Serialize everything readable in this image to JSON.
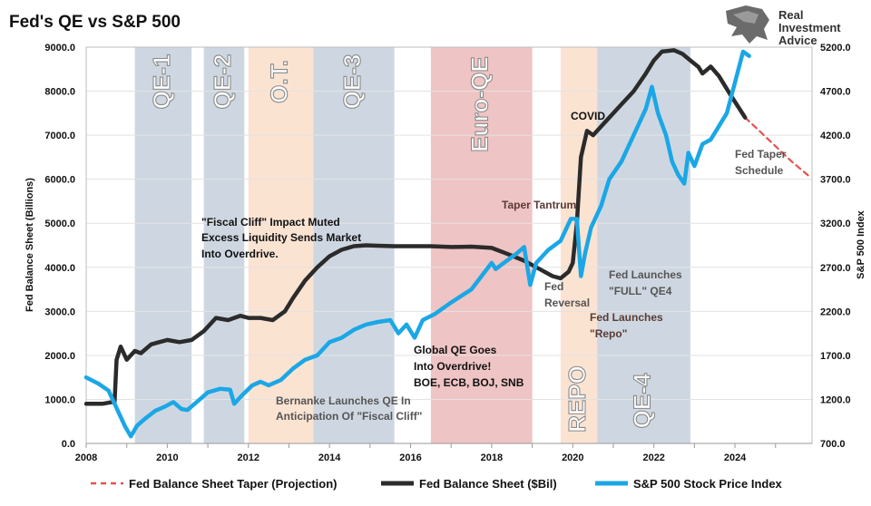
{
  "header": {
    "title": "Fed's QE vs S&P 500",
    "logo_text_line1": "Real",
    "logo_text_line2": "Investment",
    "logo_text_line3": "Advice"
  },
  "chart_data": {
    "type": "line",
    "title": "Fed's QE vs S&P 500",
    "ylabel_left": "Fed Balance Sheet (Billions)",
    "ylabel_right": "S&P 500 Index",
    "xlim": [
      2008,
      2025.9
    ],
    "ylim_left": [
      0,
      9000
    ],
    "ylim_right": [
      700,
      5200
    ],
    "x_ticks": [
      2008,
      2010,
      2012,
      2014,
      2016,
      2018,
      2020,
      2022,
      2024
    ],
    "x_tick_labels": [
      "2008",
      "2010",
      "2012",
      "2014",
      "2016",
      "2018",
      "2020",
      "2022",
      "2024"
    ],
    "left_ticks": [
      0,
      1000,
      2000,
      3000,
      4000,
      5000,
      6000,
      7000,
      8000,
      9000
    ],
    "left_tick_labels": [
      "0.0",
      "1000.0",
      "2000.0",
      "3000.0",
      "4000.0",
      "5000.0",
      "6000.0",
      "7000.0",
      "8000.0",
      "9000.0"
    ],
    "right_ticks": [
      700,
      1200,
      1700,
      2200,
      2700,
      3200,
      3700,
      4200,
      4700,
      5200
    ],
    "right_tick_labels": [
      "700.0",
      "1200.0",
      "1700.0",
      "2200.0",
      "2700.0",
      "3200.0",
      "3700.0",
      "4200.0",
      "4700.0",
      "5200.0"
    ],
    "shaded_regions": [
      {
        "label": "QE-1",
        "start": 2009.2,
        "end": 2010.6,
        "color": "#ced7e1"
      },
      {
        "label": "QE-2",
        "start": 2010.9,
        "end": 2011.9,
        "color": "#ced7e1"
      },
      {
        "label": "O.T.",
        "start": 2012.0,
        "end": 2013.6,
        "color": "#fbe3d2"
      },
      {
        "label": "QE-3",
        "start": 2013.6,
        "end": 2015.6,
        "color": "#ced7e1"
      },
      {
        "label": "Euro-QE",
        "start": 2016.5,
        "end": 2019.0,
        "color": "#efc4c4"
      },
      {
        "label": "REPO",
        "start": 2019.7,
        "end": 2020.6,
        "color": "#fbe3d2"
      },
      {
        "label": "QE-4",
        "start": 2020.6,
        "end": 2022.9,
        "color": "#ced7e1"
      }
    ],
    "series": [
      {
        "name": "Fed Balance Sheet Taper (Projection)",
        "axis": "left",
        "color": "#e8504c",
        "style": "dashed",
        "x": [
          2024.25,
          2024.6,
          2025.0,
          2025.4,
          2025.85
        ],
        "y": [
          7400,
          7100,
          6750,
          6400,
          6050
        ]
      },
      {
        "name": "Fed Balance Sheet ($Bil)",
        "axis": "left",
        "color": "#2b2b2b",
        "style": "solid",
        "x": [
          2008.0,
          2008.4,
          2008.7,
          2008.75,
          2008.85,
          2009.0,
          2009.2,
          2009.35,
          2009.6,
          2009.8,
          2010.0,
          2010.3,
          2010.6,
          2010.9,
          2011.2,
          2011.5,
          2011.8,
          2012.0,
          2012.3,
          2012.6,
          2012.9,
          2013.1,
          2013.4,
          2013.7,
          2014.0,
          2014.3,
          2014.6,
          2014.9,
          2015.2,
          2015.6,
          2016.0,
          2016.5,
          2017.0,
          2017.5,
          2018.0,
          2018.4,
          2018.8,
          2019.2,
          2019.5,
          2019.7,
          2019.9,
          2020.0,
          2020.1,
          2020.2,
          2020.35,
          2020.5,
          2020.7,
          2020.9,
          2021.2,
          2021.5,
          2021.8,
          2022.0,
          2022.2,
          2022.5,
          2022.7,
          2022.9,
          2023.1,
          2023.2,
          2023.4,
          2023.6,
          2023.9,
          2024.25
        ],
        "y": [
          900,
          900,
          950,
          1900,
          2200,
          1900,
          2100,
          2050,
          2250,
          2300,
          2350,
          2300,
          2350,
          2550,
          2850,
          2800,
          2900,
          2850,
          2850,
          2800,
          3000,
          3300,
          3700,
          4000,
          4250,
          4400,
          4480,
          4500,
          4490,
          4480,
          4480,
          4480,
          4460,
          4470,
          4440,
          4300,
          4150,
          3950,
          3800,
          3750,
          3900,
          4100,
          5000,
          6500,
          7100,
          7000,
          7200,
          7400,
          7700,
          8000,
          8400,
          8700,
          8900,
          8930,
          8850,
          8700,
          8550,
          8400,
          8560,
          8350,
          7900,
          7400
        ]
      },
      {
        "name": "S&P 500 Stock Price Index",
        "axis": "right",
        "color": "#1ba7e6",
        "style": "solid",
        "x": [
          2008.0,
          2008.3,
          2008.55,
          2008.8,
          2008.95,
          2009.1,
          2009.25,
          2009.45,
          2009.7,
          2009.95,
          2010.15,
          2010.35,
          2010.5,
          2010.75,
          2011.0,
          2011.3,
          2011.55,
          2011.65,
          2011.85,
          2012.1,
          2012.3,
          2012.5,
          2012.8,
          2013.1,
          2013.4,
          2013.7,
          2014.0,
          2014.3,
          2014.6,
          2014.9,
          2015.2,
          2015.5,
          2015.7,
          2015.9,
          2016.1,
          2016.3,
          2016.6,
          2017.0,
          2017.5,
          2018.0,
          2018.1,
          2018.3,
          2018.6,
          2018.8,
          2018.95,
          2019.1,
          2019.4,
          2019.7,
          2019.95,
          2020.1,
          2020.2,
          2020.3,
          2020.45,
          2020.7,
          2020.9,
          2021.2,
          2021.5,
          2021.8,
          2021.95,
          2022.1,
          2022.3,
          2022.45,
          2022.6,
          2022.75,
          2022.85,
          2023.0,
          2023.2,
          2023.4,
          2023.6,
          2023.8,
          2024.0,
          2024.2,
          2024.35
        ],
        "y": [
          1450,
          1380,
          1300,
          1050,
          900,
          780,
          900,
          980,
          1070,
          1120,
          1170,
          1090,
          1080,
          1180,
          1280,
          1320,
          1310,
          1150,
          1250,
          1360,
          1400,
          1360,
          1420,
          1550,
          1650,
          1700,
          1850,
          1900,
          1990,
          2050,
          2080,
          2100,
          1950,
          2050,
          1900,
          2100,
          2170,
          2300,
          2450,
          2750,
          2680,
          2750,
          2850,
          2930,
          2500,
          2750,
          2900,
          3000,
          3250,
          3250,
          2600,
          2850,
          3150,
          3400,
          3700,
          3900,
          4200,
          4500,
          4750,
          4450,
          4200,
          3900,
          3750,
          3650,
          4000,
          3850,
          4100,
          4150,
          4300,
          4450,
          4800,
          5150,
          5100
        ]
      }
    ],
    "annotations": [
      {
        "text_lines": [
          "\"Fiscal Cliff\" Impact Muted",
          "Excess Liquidity Sends Market",
          "Into Overdrive."
        ],
        "color": "#111111"
      },
      {
        "text_lines": [
          "Global QE Goes",
          "Into Overdrive!",
          "BOE, ECB, BOJ, SNB"
        ],
        "color": "#111111"
      },
      {
        "text_lines": [
          "Bernanke Launches QE In",
          "Anticipation Of \"Fiscal Cliff\""
        ],
        "color": "#555555"
      },
      {
        "text_lines": [
          "Taper Tantrum"
        ],
        "color": "#5a3b34"
      },
      {
        "text_lines": [
          "COVID"
        ],
        "color": "#111111"
      },
      {
        "text_lines": [
          "Fed",
          "Reversal"
        ],
        "color": "#555555"
      },
      {
        "text_lines": [
          "Fed Launches",
          "\"FULL\" QE4"
        ],
        "color": "#555555"
      },
      {
        "text_lines": [
          "Fed Launches",
          "\"Repo\""
        ],
        "color": "#5a3b34"
      },
      {
        "text_lines": [
          "Fed Taper",
          "Schedule"
        ],
        "color": "#555555"
      }
    ],
    "legend": {
      "placement": "bottom",
      "items": [
        "Fed Balance Sheet Taper (Projection)",
        "Fed Balance Sheet ($Bil)",
        "S&P 500 Stock Price Index"
      ]
    },
    "grid": true
  }
}
